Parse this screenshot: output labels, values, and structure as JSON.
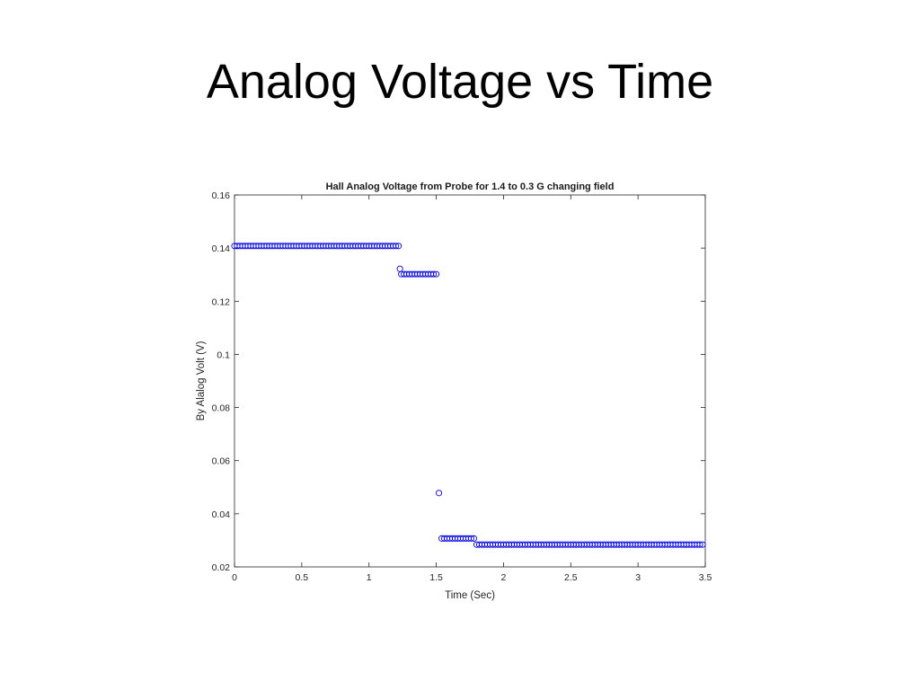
{
  "slide": {
    "title": "Analog Voltage vs Time"
  },
  "chart_data": {
    "type": "scatter",
    "title": "Hall Analog Voltage from Probe for 1.4 to 0.3 G changing field",
    "xlabel": "Time (Sec)",
    "ylabel": "By Alalog Volt (V)",
    "xlim": [
      0,
      3.5
    ],
    "ylim": [
      0.02,
      0.16
    ],
    "xticks": [
      "0",
      "0.5",
      "1",
      "1.5",
      "2",
      "2.5",
      "3",
      "3.5"
    ],
    "yticks": [
      "0.02",
      "0.04",
      "0.06",
      "0.08",
      "0.1",
      "0.12",
      "0.14",
      "0.16"
    ],
    "grid": false,
    "marker": "open-circle",
    "marker_color": "#0000ff",
    "segments": [
      {
        "x_start": 0.0,
        "x_end": 1.22,
        "y": 0.1408,
        "step": 0.02
      },
      {
        "x_start": 1.24,
        "x_end": 1.5,
        "y": 0.1302,
        "step": 0.02
      },
      {
        "x_start": 1.54,
        "x_end": 1.78,
        "y": 0.0307,
        "step": 0.02
      },
      {
        "x_start": 1.8,
        "x_end": 3.48,
        "y": 0.0284,
        "step": 0.02
      }
    ],
    "points": [
      {
        "x": 1.23,
        "y": 0.1322
      },
      {
        "x": 1.52,
        "y": 0.0478
      }
    ]
  }
}
